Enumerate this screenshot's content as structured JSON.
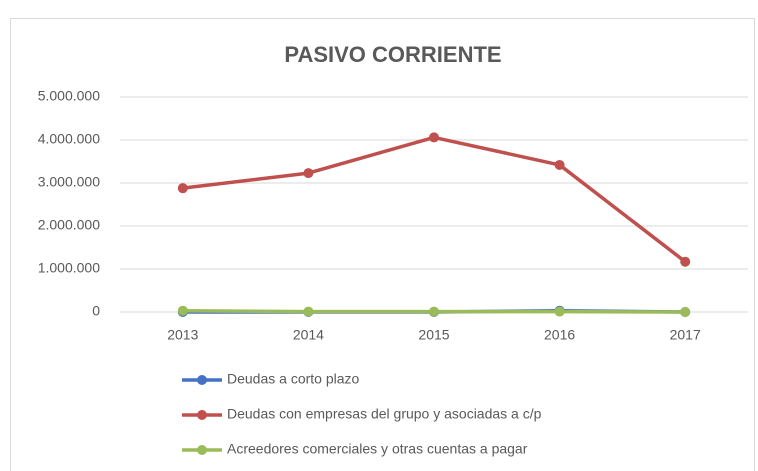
{
  "chart_data": {
    "type": "line",
    "title": "PASIVO CORRIENTE",
    "categories": [
      "2013",
      "2014",
      "2015",
      "2016",
      "2017"
    ],
    "series": [
      {
        "name": "Deudas a corto plazo",
        "color": "#4472c4",
        "values": [
          0,
          0,
          0,
          30000,
          0
        ]
      },
      {
        "name": "Deudas con empresas del grupo y asociadas a c/p",
        "color": "#c0504d",
        "values": [
          2880000,
          3230000,
          4060000,
          3420000,
          1170000
        ]
      },
      {
        "name": "Acreedores comerciales y otras cuentas a pagar",
        "color": "#9bbb59",
        "values": [
          30000,
          10000,
          10000,
          10000,
          0
        ]
      }
    ],
    "ylim": [
      0,
      5000000
    ],
    "yticks": [
      0,
      {
        "value": 1000000,
        "label": "1.000.000"
      },
      {
        "value": 2000000,
        "label": "2.000.000"
      },
      {
        "value": 3000000,
        "label": "3.000.000"
      },
      {
        "value": 4000000,
        "label": "4.000.000"
      },
      {
        "value": 5000000,
        "label": "5.000.000"
      }
    ],
    "grid": true,
    "legend": "bottom"
  }
}
